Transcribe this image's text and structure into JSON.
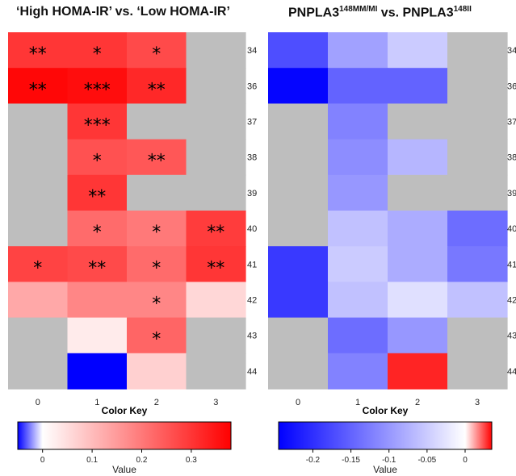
{
  "chart_data": [
    {
      "type": "heatmap",
      "title": "‘High HOMA-IR’ vs. ‘Low HOMA-IR’",
      "x": [
        0,
        1,
        2,
        3
      ],
      "y": [
        34,
        36,
        37,
        38,
        39,
        40,
        41,
        42,
        43,
        44
      ],
      "values": [
        [
          0.3,
          0.3,
          0.27,
          null
        ],
        [
          0.37,
          0.36,
          0.32,
          null
        ],
        [
          null,
          0.3,
          null,
          null
        ],
        [
          null,
          0.26,
          0.25,
          null
        ],
        [
          null,
          0.3,
          null,
          null
        ],
        [
          null,
          0.22,
          0.2,
          0.29
        ],
        [
          0.28,
          0.27,
          0.22,
          0.3
        ],
        [
          0.13,
          0.18,
          0.18,
          0.06
        ],
        [
          null,
          0.03,
          0.23,
          null
        ],
        [
          null,
          -0.05,
          0.07,
          null
        ]
      ],
      "significance": [
        [
          "**",
          "*",
          "*",
          ""
        ],
        [
          "**",
          "***",
          "**",
          ""
        ],
        [
          "",
          "***",
          "",
          ""
        ],
        [
          "",
          "*",
          "**",
          ""
        ],
        [
          "",
          "**",
          "",
          ""
        ],
        [
          "",
          "*",
          "*",
          "**"
        ],
        [
          "*",
          "**",
          "*",
          "**"
        ],
        [
          "",
          "",
          "*",
          ""
        ],
        [
          "",
          "",
          "*",
          ""
        ],
        [
          "",
          "",
          "",
          ""
        ]
      ],
      "color_key": {
        "title": "Color Key",
        "xlabel": "Value",
        "range": [
          -0.05,
          0.38
        ],
        "ticks": [
          "0",
          "0.1",
          "0.2",
          "0.3"
        ],
        "tick_values": [
          0,
          0.1,
          0.2,
          0.3
        ],
        "colors": [
          "#0000ff",
          "#ffffff",
          "#ff0000"
        ]
      },
      "na_color": "#bebebe"
    },
    {
      "type": "heatmap",
      "title": "PNPLA3",
      "title_sup_a": "148MM/MI",
      "title_mid": " vs. PNPLA3",
      "title_sup_b": "148II",
      "x": [
        0,
        1,
        2,
        3
      ],
      "y": [
        34,
        36,
        37,
        38,
        39,
        40,
        41,
        42,
        43,
        44
      ],
      "values": [
        [
          -0.17,
          -0.09,
          -0.05,
          null
        ],
        [
          -0.24,
          -0.15,
          -0.15,
          null
        ],
        [
          null,
          -0.12,
          null,
          null
        ],
        [
          null,
          -0.11,
          -0.07,
          null
        ],
        [
          null,
          -0.1,
          null,
          null
        ],
        [
          null,
          -0.06,
          -0.08,
          -0.14
        ],
        [
          -0.19,
          -0.05,
          -0.08,
          -0.13
        ],
        [
          -0.19,
          -0.06,
          -0.03,
          -0.06
        ],
        [
          null,
          -0.14,
          -0.1,
          null
        ],
        [
          null,
          -0.12,
          0.03,
          null
        ]
      ],
      "color_key": {
        "title": "Color Key",
        "xlabel": "Value",
        "range": [
          -0.245,
          0.035
        ],
        "ticks": [
          "-0.2",
          "-0.15",
          "-0.1",
          "-0.05",
          "0"
        ],
        "tick_values": [
          -0.2,
          -0.15,
          -0.1,
          -0.05,
          0
        ],
        "colors": [
          "#0000ff",
          "#ffffff",
          "#ff0000"
        ]
      },
      "na_color": "#bebebe"
    }
  ]
}
